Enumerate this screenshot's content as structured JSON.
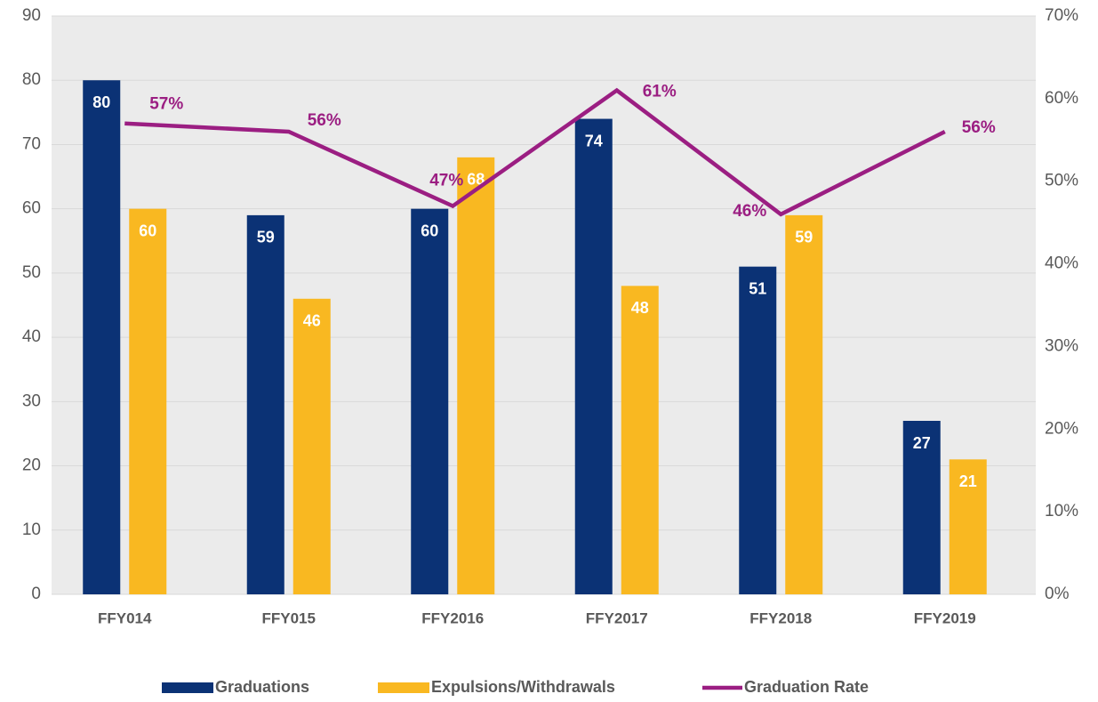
{
  "chart_data": {
    "type": "bar",
    "categories": [
      "FFY014",
      "FFY015",
      "FFY2016",
      "FFY2017",
      "FFY2018",
      "FFY2019"
    ],
    "series": [
      {
        "name": "Graduations",
        "type": "bar",
        "color": "#0b3275",
        "values": [
          80,
          59,
          60,
          74,
          51,
          27
        ]
      },
      {
        "name": "Expulsions/Withdrawals",
        "type": "bar",
        "color": "#f9b821",
        "values": [
          60,
          46,
          68,
          48,
          59,
          21
        ]
      },
      {
        "name": "Graduation Rate",
        "type": "line",
        "axis": "y2",
        "color": "#9b1e82",
        "values": [
          57,
          56,
          47,
          61,
          46,
          56
        ],
        "value_labels": [
          "57%",
          "56%",
          "47%",
          "61%",
          "46%",
          "56%"
        ]
      }
    ],
    "ylim": [
      0,
      90
    ],
    "yticks": [
      0,
      10,
      20,
      30,
      40,
      50,
      60,
      70,
      80,
      90
    ],
    "y2lim": [
      0,
      70
    ],
    "y2ticks": [
      {
        "value": 0,
        "label": "0%"
      },
      {
        "value": 10,
        "label": "10%"
      },
      {
        "value": 20,
        "label": "20%"
      },
      {
        "value": 30,
        "label": "30%"
      },
      {
        "value": 40,
        "label": "40%"
      },
      {
        "value": 50,
        "label": "50%"
      },
      {
        "value": 60,
        "label": "60%"
      },
      {
        "value": 70,
        "label": "70%"
      }
    ],
    "grid": true,
    "legend": "bottom"
  }
}
